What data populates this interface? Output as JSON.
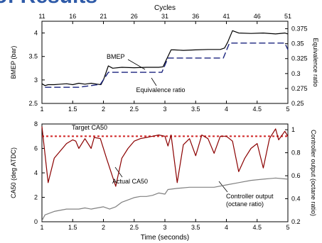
{
  "slide_title": "of Results",
  "chart_data": [
    {
      "type": "line",
      "title": "",
      "xlabel_top": "Cycles",
      "x2_ticks": [
        11,
        16,
        21,
        26,
        31,
        36,
        41,
        46,
        51
      ],
      "x_ticks": [
        1,
        1.5,
        2,
        2.5,
        3,
        3.5,
        4,
        4.5,
        5
      ],
      "xlim": [
        1,
        5
      ],
      "ylabel": "BMEP (bar)",
      "ylim": [
        2.5,
        4.25
      ],
      "y_ticks": [
        2.5,
        3,
        3.5,
        4
      ],
      "y2label": "Equivalence ratio",
      "y2lim": [
        0.25,
        0.3875
      ],
      "y2_ticks": [
        0.25,
        0.275,
        0.3,
        0.325,
        0.35,
        0.375
      ],
      "series": [
        {
          "name": "BMEP",
          "axis": "left",
          "color": "#000000",
          "style": "solid",
          "x": [
            1.0,
            1.05,
            1.1,
            1.2,
            1.3,
            1.4,
            1.5,
            1.6,
            1.7,
            1.8,
            1.9,
            1.96,
            2.0,
            2.08,
            2.15,
            2.3,
            2.5,
            2.7,
            2.9,
            2.97,
            3.02,
            3.1,
            3.15,
            3.3,
            3.5,
            3.7,
            3.9,
            3.97,
            4.02,
            4.1,
            4.2,
            4.4,
            4.6,
            4.8,
            4.95,
            5.0
          ],
          "y": [
            2.92,
            2.88,
            2.9,
            2.9,
            2.91,
            2.92,
            2.9,
            2.93,
            2.91,
            2.93,
            2.91,
            2.9,
            3.0,
            3.3,
            3.25,
            3.27,
            3.26,
            3.27,
            3.27,
            3.28,
            3.42,
            3.64,
            3.64,
            3.63,
            3.64,
            3.65,
            3.65,
            3.68,
            3.8,
            4.05,
            4.0,
            3.99,
            4.0,
            3.98,
            4.0,
            3.98
          ]
        },
        {
          "name": "Equivalence ratio",
          "axis": "right",
          "color": "#1a237e",
          "style": "dashed",
          "x": [
            1.05,
            1.6,
            1.95,
            2.08,
            2.95,
            3.05,
            3.95,
            4.05,
            4.95,
            5.0
          ],
          "y": [
            0.277,
            0.277,
            0.282,
            0.302,
            0.302,
            0.326,
            0.326,
            0.351,
            0.351,
            0.34
          ]
        }
      ],
      "annotations": [
        "BMEP",
        "Equivalence ratio"
      ]
    },
    {
      "type": "line",
      "title": "",
      "xlabel": "Time (seconds)",
      "x_ticks": [
        1,
        1.5,
        2,
        2.5,
        3,
        3.5,
        4,
        4.5,
        5
      ],
      "xlim": [
        1,
        5
      ],
      "ylabel": "CA50 (deg ATDC)",
      "ylim": [
        0,
        8
      ],
      "y_ticks": [
        0,
        2,
        4,
        6,
        8
      ],
      "y2label": "Controller output (octane ratio)",
      "y2lim": [
        0.2,
        1.05
      ],
      "y2_ticks": [
        0.2,
        0.4,
        0.6,
        0.8,
        1
      ],
      "series": [
        {
          "name": "Target CA50",
          "axis": "left",
          "color": "#d32f2f",
          "style": "dotted",
          "x": [
            1,
            5
          ],
          "y": [
            7.0,
            7.0
          ]
        },
        {
          "name": "Actual CA50",
          "axis": "left",
          "color": "#8b0000",
          "style": "solid",
          "x": [
            1.0,
            1.1,
            1.2,
            1.3,
            1.4,
            1.5,
            1.55,
            1.6,
            1.7,
            1.8,
            1.85,
            1.95,
            2.05,
            2.2,
            2.3,
            2.4,
            2.5,
            2.6,
            2.7,
            2.8,
            2.9,
            3.0,
            3.05,
            3.1,
            3.2,
            3.3,
            3.4,
            3.5,
            3.6,
            3.7,
            3.8,
            3.9,
            4.0,
            4.1,
            4.2,
            4.3,
            4.4,
            4.5,
            4.6,
            4.7,
            4.8,
            4.85,
            4.95,
            5.0
          ],
          "y": [
            7.8,
            3.2,
            5.2,
            5.8,
            6.4,
            6.7,
            6.6,
            6.0,
            6.8,
            6.0,
            6.9,
            6.8,
            5.2,
            2.9,
            5.2,
            6.0,
            6.6,
            6.8,
            6.9,
            7.0,
            7.1,
            7.0,
            6.2,
            7.1,
            3.2,
            6.3,
            6.8,
            5.4,
            7.1,
            6.8,
            5.6,
            7.0,
            7.0,
            6.6,
            4.1,
            5.2,
            6.0,
            6.4,
            4.4,
            6.8,
            7.6,
            6.7,
            7.4,
            7.0
          ]
        },
        {
          "name": "Controller output (octane ratio)",
          "axis": "right",
          "color": "#808080",
          "style": "solid",
          "x": [
            1.0,
            1.05,
            1.2,
            1.4,
            1.6,
            1.7,
            1.8,
            1.9,
            2.0,
            2.1,
            2.2,
            2.3,
            2.4,
            2.5,
            2.6,
            2.7,
            2.8,
            2.9,
            3.0,
            3.05,
            3.2,
            3.4,
            3.6,
            3.8,
            4.0,
            4.2,
            4.4,
            4.6,
            4.8,
            5.0
          ],
          "y": [
            0.21,
            0.26,
            0.29,
            0.31,
            0.31,
            0.32,
            0.31,
            0.32,
            0.33,
            0.31,
            0.33,
            0.37,
            0.39,
            0.41,
            0.42,
            0.42,
            0.43,
            0.45,
            0.44,
            0.48,
            0.49,
            0.5,
            0.5,
            0.5,
            0.52,
            0.54,
            0.56,
            0.57,
            0.58,
            0.57
          ]
        }
      ],
      "annotations": [
        "Target CA50",
        "Actual CA50",
        "Controller output (octane ratio)"
      ]
    }
  ]
}
